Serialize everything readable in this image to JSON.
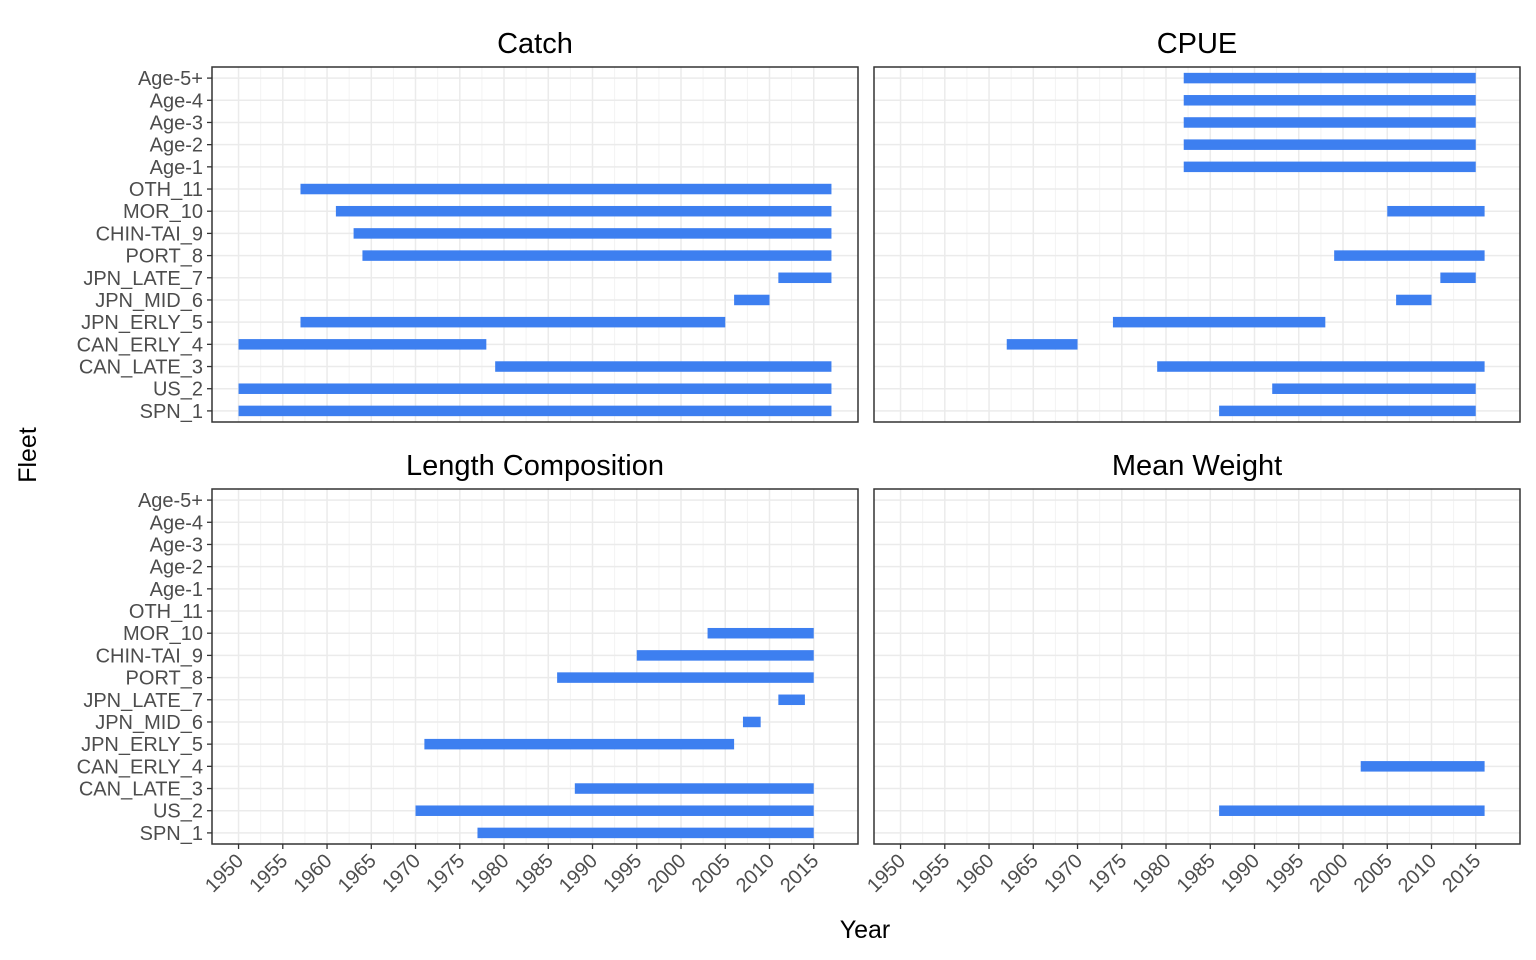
{
  "chart_data": {
    "type": "bar",
    "subtype": "timeline-gantt",
    "xlabel": "Year",
    "ylabel": "Fleet",
    "xlim": [
      1947,
      2020
    ],
    "x_ticks": [
      1950,
      1955,
      1960,
      1965,
      1970,
      1975,
      1980,
      1985,
      1990,
      1995,
      2000,
      2005,
      2010,
      2015
    ],
    "fleets": [
      "SPN_1",
      "US_2",
      "CAN_LATE_3",
      "CAN_ERLY_4",
      "JPN_ERLY_5",
      "JPN_MID_6",
      "JPN_LATE_7",
      "PORT_8",
      "CHIN-TAI_9",
      "MOR_10",
      "OTH_11",
      "Age-1",
      "Age-2",
      "Age-3",
      "Age-4",
      "Age-5+"
    ],
    "bar_color": "#3d7ff0",
    "panels": [
      {
        "title": "Catch",
        "bars": [
          {
            "fleet": "SPN_1",
            "start": 1950,
            "end": 2017
          },
          {
            "fleet": "US_2",
            "start": 1950,
            "end": 2017
          },
          {
            "fleet": "CAN_LATE_3",
            "start": 1979,
            "end": 2017
          },
          {
            "fleet": "CAN_ERLY_4",
            "start": 1950,
            "end": 1978
          },
          {
            "fleet": "JPN_ERLY_5",
            "start": 1957,
            "end": 2005
          },
          {
            "fleet": "JPN_MID_6",
            "start": 2006,
            "end": 2010
          },
          {
            "fleet": "JPN_LATE_7",
            "start": 2011,
            "end": 2017
          },
          {
            "fleet": "PORT_8",
            "start": 1964,
            "end": 2017
          },
          {
            "fleet": "CHIN-TAI_9",
            "start": 1963,
            "end": 2017
          },
          {
            "fleet": "MOR_10",
            "start": 1961,
            "end": 2017
          },
          {
            "fleet": "OTH_11",
            "start": 1957,
            "end": 2017
          }
        ]
      },
      {
        "title": "CPUE",
        "bars": [
          {
            "fleet": "SPN_1",
            "start": 1986,
            "end": 2015
          },
          {
            "fleet": "US_2",
            "start": 1992,
            "end": 2015
          },
          {
            "fleet": "CAN_LATE_3",
            "start": 1979,
            "end": 2016
          },
          {
            "fleet": "CAN_ERLY_4",
            "start": 1962,
            "end": 1970
          },
          {
            "fleet": "JPN_ERLY_5",
            "start": 1974,
            "end": 1998
          },
          {
            "fleet": "JPN_MID_6",
            "start": 2006,
            "end": 2010
          },
          {
            "fleet": "JPN_LATE_7",
            "start": 2011,
            "end": 2015
          },
          {
            "fleet": "PORT_8",
            "start": 1999,
            "end": 2016
          },
          {
            "fleet": "MOR_10",
            "start": 2005,
            "end": 2016
          },
          {
            "fleet": "Age-1",
            "start": 1982,
            "end": 2015
          },
          {
            "fleet": "Age-2",
            "start": 1982,
            "end": 2015
          },
          {
            "fleet": "Age-3",
            "start": 1982,
            "end": 2015
          },
          {
            "fleet": "Age-4",
            "start": 1982,
            "end": 2015
          },
          {
            "fleet": "Age-5+",
            "start": 1982,
            "end": 2015
          }
        ]
      },
      {
        "title": "Length Composition",
        "bars": [
          {
            "fleet": "SPN_1",
            "start": 1977,
            "end": 2015
          },
          {
            "fleet": "US_2",
            "start": 1970,
            "end": 2015
          },
          {
            "fleet": "CAN_LATE_3",
            "start": 1988,
            "end": 2015
          },
          {
            "fleet": "JPN_ERLY_5",
            "start": 1971,
            "end": 2006
          },
          {
            "fleet": "JPN_MID_6",
            "start": 2007,
            "end": 2009
          },
          {
            "fleet": "JPN_LATE_7",
            "start": 2011,
            "end": 2014
          },
          {
            "fleet": "PORT_8",
            "start": 1986,
            "end": 2015
          },
          {
            "fleet": "CHIN-TAI_9",
            "start": 1995,
            "end": 2015
          },
          {
            "fleet": "MOR_10",
            "start": 2003,
            "end": 2015
          }
        ]
      },
      {
        "title": "Mean Weight",
        "bars": [
          {
            "fleet": "US_2",
            "start": 1986,
            "end": 2016
          },
          {
            "fleet": "CAN_ERLY_4",
            "start": 2002,
            "end": 2016
          }
        ]
      }
    ]
  }
}
